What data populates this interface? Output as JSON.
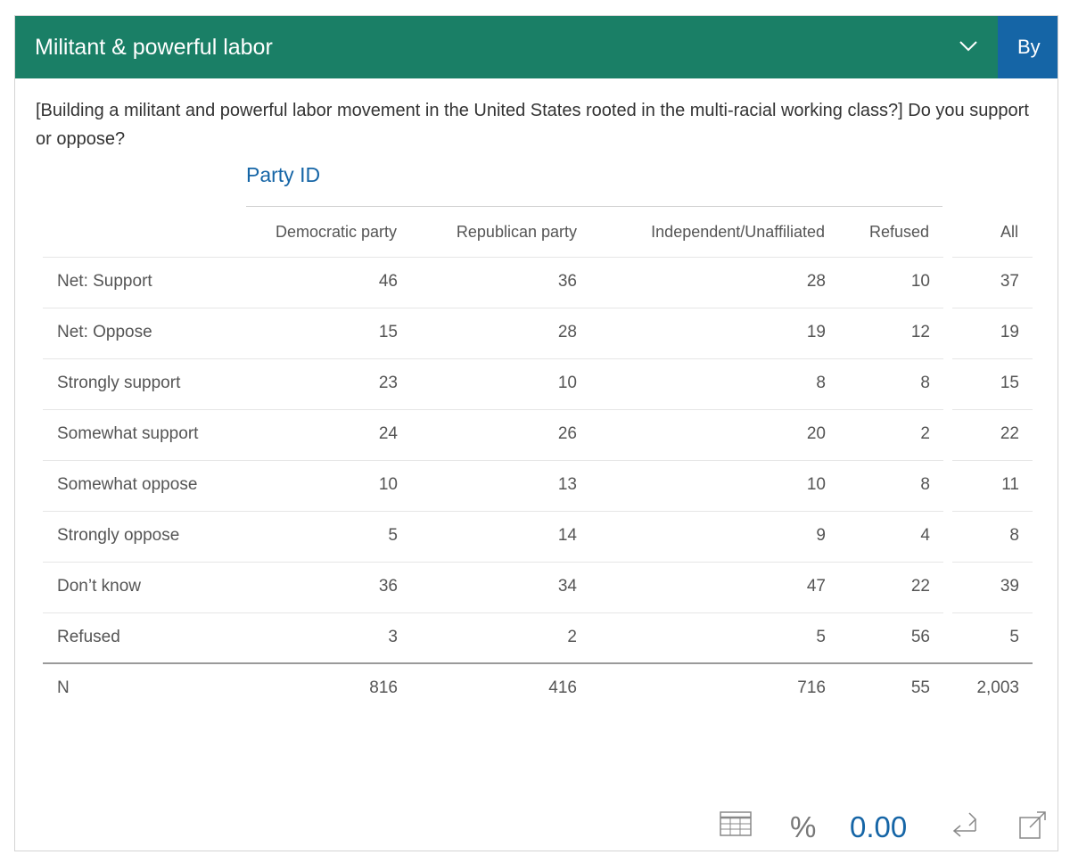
{
  "header": {
    "title": "Militant & powerful labor",
    "by_tab": "By"
  },
  "question": "[Building a militant and powerful labor movement in the United States rooted in the multi-racial working class?] Do you support or oppose?",
  "banner_label": "Party ID",
  "columns": [
    "Democratic party",
    "Republican party",
    "Independent/Unaffiliated",
    "Refused",
    "All"
  ],
  "rows": [
    {
      "label": "Net: Support",
      "values": [
        "46",
        "36",
        "28",
        "10",
        "37"
      ]
    },
    {
      "label": "Net: Oppose",
      "values": [
        "15",
        "28",
        "19",
        "12",
        "19"
      ]
    },
    {
      "label": "Strongly support",
      "values": [
        "23",
        "10",
        "8",
        "8",
        "15"
      ]
    },
    {
      "label": "Somewhat support",
      "values": [
        "24",
        "26",
        "20",
        "2",
        "22"
      ]
    },
    {
      "label": "Somewhat oppose",
      "values": [
        "10",
        "13",
        "10",
        "8",
        "11"
      ]
    },
    {
      "label": "Strongly oppose",
      "values": [
        "5",
        "14",
        "9",
        "4",
        "8"
      ]
    },
    {
      "label": "Don’t know",
      "values": [
        "36",
        "34",
        "47",
        "22",
        "39"
      ]
    },
    {
      "label": "Refused",
      "values": [
        "3",
        "2",
        "5",
        "56",
        "5"
      ]
    }
  ],
  "total_row": {
    "label": "N",
    "values": [
      "816",
      "416",
      "716",
      "55",
      "2,003"
    ]
  },
  "toolbar": {
    "percent_label": "%",
    "decimals_label": "0.00",
    "icons": [
      "table-icon",
      "percent-icon",
      "decimals",
      "swap-icon",
      "export-icon"
    ]
  },
  "colors": {
    "header_bg": "#1a7f66",
    "by_tab_bg": "#1565a6",
    "accent_blue": "#1565a6"
  }
}
